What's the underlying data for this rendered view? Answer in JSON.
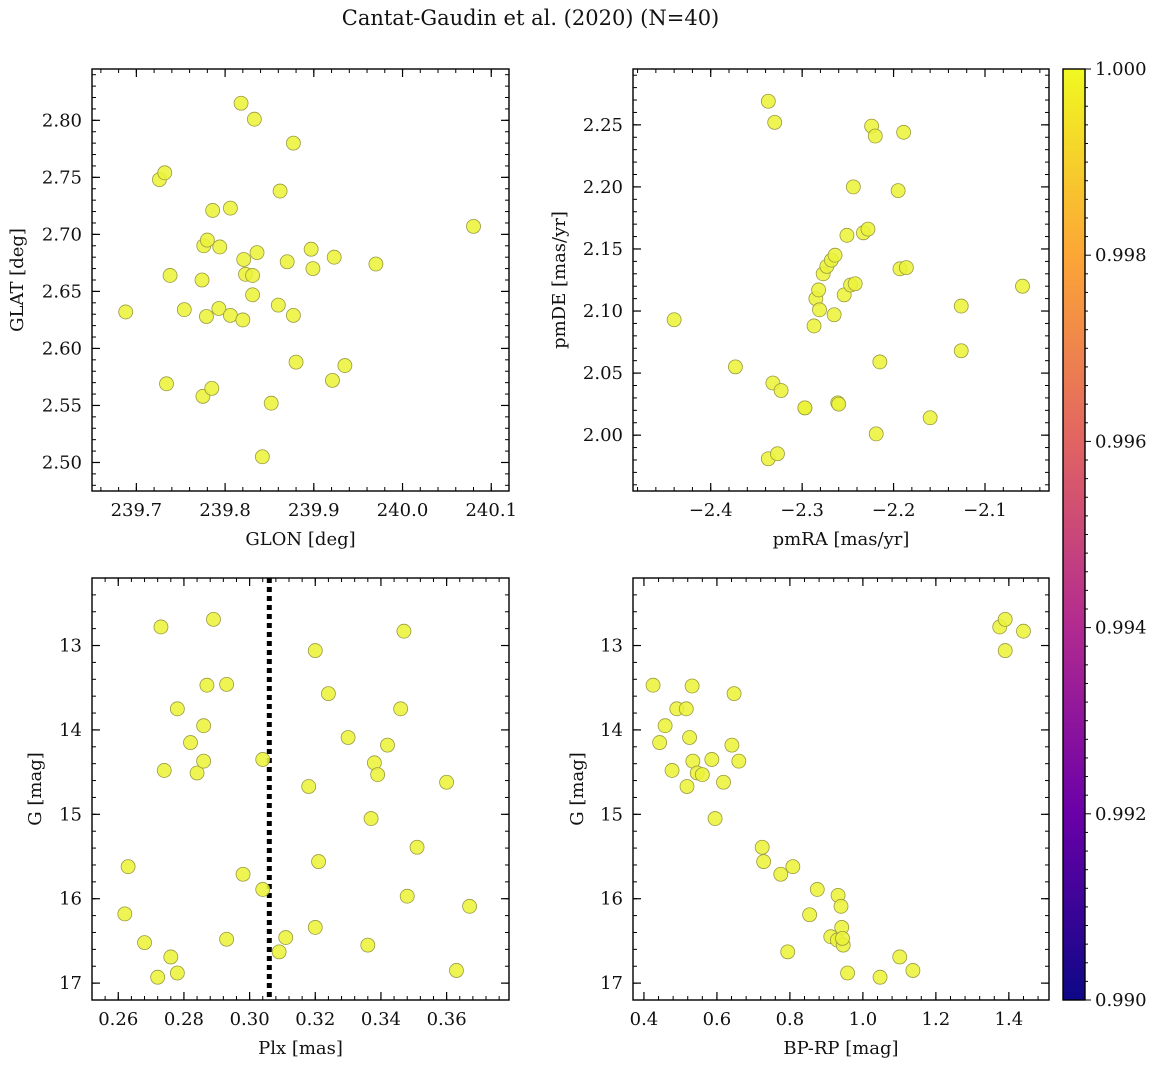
{
  "figure": {
    "title": "Cantat-Gaudin et al. (2020) (N=40)"
  },
  "colorbar": {
    "min": 0.99,
    "max": 1.0,
    "ticks": [
      "0.990",
      "0.992",
      "0.994",
      "0.996",
      "0.998",
      "1.000"
    ],
    "colormap": "plasma",
    "colors": [
      "#0d0887",
      "#6a00a8",
      "#b12a90",
      "#e16462",
      "#fca636",
      "#f0f921"
    ]
  },
  "colors": {
    "marker_fill": "#ecf23a",
    "marker_edge": "#9a9a40",
    "axis": "#000000",
    "vline": "#000000"
  },
  "chart_data": [
    {
      "type": "scatter",
      "xlabel": "GLON [deg]",
      "ylabel": "GLAT [deg]",
      "xlim": [
        239.65,
        240.12
      ],
      "ylim": [
        2.475,
        2.845
      ],
      "xticks": [
        239.7,
        239.8,
        239.9,
        240.0,
        240.1
      ],
      "xtick_labels": [
        "239.7",
        "239.8",
        "239.9",
        "240.0",
        "240.1"
      ],
      "yticks": [
        2.5,
        2.55,
        2.6,
        2.65,
        2.7,
        2.75,
        2.8
      ],
      "ytick_labels": [
        "2.50",
        "2.55",
        "2.60",
        "2.65",
        "2.70",
        "2.75",
        "2.80"
      ],
      "invert_y": false,
      "points": [
        [
          239.688,
          2.632
        ],
        [
          239.726,
          2.748
        ],
        [
          239.732,
          2.754
        ],
        [
          239.734,
          2.569
        ],
        [
          239.738,
          2.664
        ],
        [
          239.754,
          2.634
        ],
        [
          239.774,
          2.66
        ],
        [
          239.775,
          2.558
        ],
        [
          239.776,
          2.69
        ],
        [
          239.779,
          2.628
        ],
        [
          239.78,
          2.695
        ],
        [
          239.785,
          2.565
        ],
        [
          239.786,
          2.721
        ],
        [
          239.793,
          2.635
        ],
        [
          239.794,
          2.689
        ],
        [
          239.806,
          2.723
        ],
        [
          239.806,
          2.629
        ],
        [
          239.818,
          2.815
        ],
        [
          239.82,
          2.625
        ],
        [
          239.821,
          2.678
        ],
        [
          239.823,
          2.665
        ],
        [
          239.831,
          2.664
        ],
        [
          239.831,
          2.647
        ],
        [
          239.833,
          2.801
        ],
        [
          239.836,
          2.684
        ],
        [
          239.842,
          2.505
        ],
        [
          239.852,
          2.552
        ],
        [
          239.86,
          2.638
        ],
        [
          239.862,
          2.738
        ],
        [
          239.87,
          2.676
        ],
        [
          239.877,
          2.78
        ],
        [
          239.877,
          2.629
        ],
        [
          239.88,
          2.588
        ],
        [
          239.897,
          2.687
        ],
        [
          239.899,
          2.67
        ],
        [
          239.921,
          2.572
        ],
        [
          239.923,
          2.68
        ],
        [
          239.935,
          2.585
        ],
        [
          239.97,
          2.674
        ],
        [
          240.08,
          2.707
        ]
      ]
    },
    {
      "type": "scatter",
      "xlabel": "pmRA [mas/yr]",
      "ylabel": "pmDE [mas/yr]",
      "xlim": [
        -2.485,
        -2.03
      ],
      "ylim": [
        1.955,
        2.295
      ],
      "xticks": [
        -2.4,
        -2.3,
        -2.2,
        -2.1
      ],
      "xtick_labels": [
        "−2.4",
        "−2.3",
        "−2.2",
        "−2.1"
      ],
      "yticks": [
        2.0,
        2.05,
        2.1,
        2.15,
        2.2,
        2.25
      ],
      "ytick_labels": [
        "2.00",
        "2.05",
        "2.10",
        "2.15",
        "2.20",
        "2.25"
      ],
      "invert_y": false,
      "points": [
        [
          -2.44,
          2.093
        ],
        [
          -2.373,
          2.055
        ],
        [
          -2.337,
          2.269
        ],
        [
          -2.337,
          1.981
        ],
        [
          -2.332,
          2.042
        ],
        [
          -2.33,
          2.252
        ],
        [
          -2.327,
          1.985
        ],
        [
          -2.323,
          2.036
        ],
        [
          -2.297,
          2.022
        ],
        [
          -2.287,
          2.088
        ],
        [
          -2.285,
          2.11
        ],
        [
          -2.282,
          2.117
        ],
        [
          -2.281,
          2.101
        ],
        [
          -2.277,
          2.13
        ],
        [
          -2.273,
          2.136
        ],
        [
          -2.268,
          2.141
        ],
        [
          -2.264,
          2.145
        ],
        [
          -2.265,
          2.097
        ],
        [
          -2.261,
          2.026
        ],
        [
          -2.26,
          2.025
        ],
        [
          -2.254,
          2.113
        ],
        [
          -2.251,
          2.161
        ],
        [
          -2.247,
          2.121
        ],
        [
          -2.244,
          2.2
        ],
        [
          -2.242,
          2.122
        ],
        [
          -2.233,
          2.163
        ],
        [
          -2.228,
          2.166
        ],
        [
          -2.224,
          2.249
        ],
        [
          -2.22,
          2.241
        ],
        [
          -2.219,
          2.001
        ],
        [
          -2.215,
          2.059
        ],
        [
          -2.195,
          2.197
        ],
        [
          -2.193,
          2.134
        ],
        [
          -2.189,
          2.244
        ],
        [
          -2.186,
          2.135
        ],
        [
          -2.16,
          2.014
        ],
        [
          -2.126,
          2.104
        ],
        [
          -2.126,
          2.068
        ],
        [
          -2.059,
          2.12
        ],
        [
          -2.297,
          2.022
        ]
      ]
    },
    {
      "type": "scatter",
      "xlabel": "Plx [mas]",
      "ylabel": "G [mag]",
      "xlim": [
        0.252,
        0.379
      ],
      "ylim": [
        17.2,
        12.2
      ],
      "xticks": [
        0.26,
        0.28,
        0.3,
        0.32,
        0.34,
        0.36
      ],
      "xtick_labels": [
        "0.26",
        "0.28",
        "0.30",
        "0.32",
        "0.34",
        "0.36"
      ],
      "yticks": [
        13,
        14,
        15,
        16,
        17
      ],
      "ytick_labels": [
        "13",
        "14",
        "15",
        "16",
        "17"
      ],
      "invert_y": true,
      "vline": 0.306,
      "points": [
        [
          0.262,
          16.18
        ],
        [
          0.263,
          15.62
        ],
        [
          0.268,
          16.52
        ],
        [
          0.272,
          16.93
        ],
        [
          0.273,
          12.78
        ],
        [
          0.274,
          14.48
        ],
        [
          0.276,
          16.69
        ],
        [
          0.278,
          13.75
        ],
        [
          0.278,
          16.88
        ],
        [
          0.282,
          14.15
        ],
        [
          0.284,
          14.51
        ],
        [
          0.286,
          13.95
        ],
        [
          0.286,
          14.37
        ],
        [
          0.287,
          13.47
        ],
        [
          0.289,
          12.69
        ],
        [
          0.293,
          13.46
        ],
        [
          0.293,
          16.48
        ],
        [
          0.298,
          15.71
        ],
        [
          0.304,
          14.35
        ],
        [
          0.304,
          15.89
        ],
        [
          0.309,
          16.63
        ],
        [
          0.311,
          16.46
        ],
        [
          0.318,
          14.67
        ],
        [
          0.32,
          16.34
        ],
        [
          0.32,
          13.06
        ],
        [
          0.321,
          15.56
        ],
        [
          0.324,
          13.57
        ],
        [
          0.33,
          14.09
        ],
        [
          0.336,
          16.55
        ],
        [
          0.337,
          15.05
        ],
        [
          0.338,
          14.39
        ],
        [
          0.339,
          14.53
        ],
        [
          0.342,
          14.18
        ],
        [
          0.346,
          13.75
        ],
        [
          0.347,
          12.83
        ],
        [
          0.348,
          15.97
        ],
        [
          0.351,
          15.39
        ],
        [
          0.36,
          14.62
        ],
        [
          0.363,
          16.85
        ],
        [
          0.367,
          16.09
        ]
      ]
    },
    {
      "type": "scatter",
      "xlabel": "BP-RP [mag]",
      "ylabel": "G [mag]",
      "xlim": [
        0.37,
        1.51
      ],
      "ylim": [
        17.2,
        12.2
      ],
      "xticks": [
        0.4,
        0.6,
        0.8,
        1.0,
        1.2,
        1.4
      ],
      "xtick_labels": [
        "0.4",
        "0.6",
        "0.8",
        "1.0",
        "1.2",
        "1.4"
      ],
      "yticks": [
        13,
        14,
        15,
        16,
        17
      ],
      "ytick_labels": [
        "13",
        "14",
        "15",
        "16",
        "17"
      ],
      "invert_y": true,
      "points": [
        [
          0.425,
          13.47
        ],
        [
          0.443,
          14.15
        ],
        [
          0.458,
          13.95
        ],
        [
          0.477,
          14.48
        ],
        [
          0.49,
          13.75
        ],
        [
          0.516,
          13.75
        ],
        [
          0.518,
          14.67
        ],
        [
          0.525,
          14.09
        ],
        [
          0.532,
          13.48
        ],
        [
          0.534,
          14.37
        ],
        [
          0.546,
          14.51
        ],
        [
          0.56,
          14.53
        ],
        [
          0.586,
          14.35
        ],
        [
          0.595,
          15.05
        ],
        [
          0.618,
          14.62
        ],
        [
          0.641,
          14.18
        ],
        [
          0.647,
          13.57
        ],
        [
          0.66,
          14.37
        ],
        [
          0.724,
          15.39
        ],
        [
          0.728,
          15.56
        ],
        [
          0.775,
          15.71
        ],
        [
          0.794,
          16.63
        ],
        [
          0.808,
          15.62
        ],
        [
          0.854,
          16.19
        ],
        [
          0.875,
          15.89
        ],
        [
          0.912,
          16.45
        ],
        [
          0.93,
          16.49
        ],
        [
          0.932,
          15.96
        ],
        [
          0.94,
          16.09
        ],
        [
          0.942,
          16.34
        ],
        [
          0.946,
          16.55
        ],
        [
          0.958,
          16.88
        ],
        [
          1.047,
          16.93
        ],
        [
          1.101,
          16.69
        ],
        [
          1.137,
          16.85
        ],
        [
          1.375,
          12.78
        ],
        [
          1.39,
          12.69
        ],
        [
          1.39,
          13.06
        ],
        [
          1.44,
          12.83
        ],
        [
          0.944,
          16.47
        ]
      ]
    }
  ]
}
